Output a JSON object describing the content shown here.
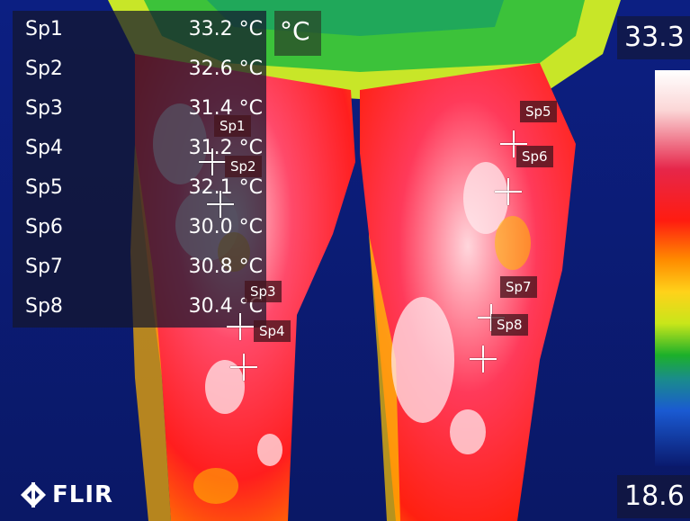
{
  "readings": [
    {
      "label": "Sp1",
      "value": "33.2 °C"
    },
    {
      "label": "Sp2",
      "value": "32.6 °C"
    },
    {
      "label": "Sp3",
      "value": "31.4 °C"
    },
    {
      "label": "Sp4",
      "value": "31.2 °C"
    },
    {
      "label": "Sp5",
      "value": "32.1 °C"
    },
    {
      "label": "Sp6",
      "value": "30.0 °C"
    },
    {
      "label": "Sp7",
      "value": "30.8 °C"
    },
    {
      "label": "Sp8",
      "value": "30.4 °C"
    }
  ],
  "unit": "°C",
  "scale": {
    "max": "33.3",
    "min": "18.6"
  },
  "markers": {
    "sp1": "Sp1",
    "sp2": "Sp2",
    "sp3": "Sp3",
    "sp4": "Sp4",
    "sp5": "Sp5",
    "sp6": "Sp6",
    "sp7": "Sp7",
    "sp8": "Sp8"
  },
  "brand": {
    "logo_text": "FLIR",
    "logo_icon": "flir-diamond-icon"
  }
}
